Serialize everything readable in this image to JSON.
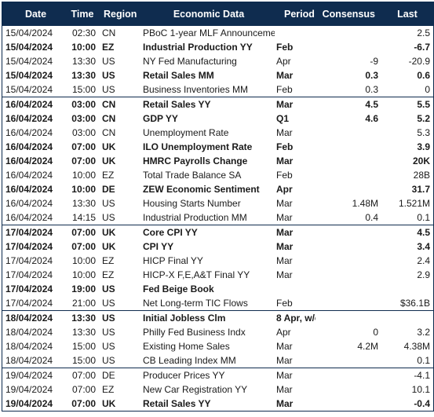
{
  "table": {
    "headers": {
      "date": "Date",
      "time": "Time",
      "region": "Region",
      "data": "Economic Data",
      "period": "Period",
      "consensus": "Consensus",
      "last": "Last"
    },
    "header_bg": "#0f2c4f",
    "rows": [
      {
        "date": "15/04/2024",
        "time": "02:30",
        "region": "CN",
        "data": "PBoC 1-year MLF Announcement",
        "period": "",
        "consensus": "",
        "last": "2.5",
        "bold": false,
        "group_start": false
      },
      {
        "date": "15/04/2024",
        "time": "10:00",
        "region": "EZ",
        "data": "Industrial Production YY",
        "period": "Feb",
        "consensus": "",
        "last": "-6.7",
        "bold": true,
        "group_start": false
      },
      {
        "date": "15/04/2024",
        "time": "13:30",
        "region": "US",
        "data": "NY Fed Manufacturing",
        "period": "Apr",
        "consensus": "-9",
        "last": "-20.9",
        "bold": false,
        "group_start": false
      },
      {
        "date": "15/04/2024",
        "time": "13:30",
        "region": "US",
        "data": "Retail Sales MM",
        "period": "Mar",
        "consensus": "0.3",
        "last": "0.6",
        "bold": true,
        "group_start": false
      },
      {
        "date": "15/04/2024",
        "time": "15:00",
        "region": "US",
        "data": "Business Inventories MM",
        "period": "Feb",
        "consensus": "0.3",
        "last": "0",
        "bold": false,
        "group_start": false
      },
      {
        "date": "16/04/2024",
        "time": "03:00",
        "region": "CN",
        "data": "Retail Sales YY",
        "period": "Mar",
        "consensus": "4.5",
        "last": "5.5",
        "bold": true,
        "group_start": true
      },
      {
        "date": "16/04/2024",
        "time": "03:00",
        "region": "CN",
        "data": "GDP YY",
        "period": "Q1",
        "consensus": "4.6",
        "last": "5.2",
        "bold": true,
        "group_start": false
      },
      {
        "date": "16/04/2024",
        "time": "03:00",
        "region": "CN",
        "data": "Unemployment Rate",
        "period": "Mar",
        "consensus": "",
        "last": "5.3",
        "bold": false,
        "group_start": false
      },
      {
        "date": "16/04/2024",
        "time": "07:00",
        "region": "UK",
        "data": "ILO Unemployment Rate",
        "period": "Feb",
        "consensus": "",
        "last": "3.9",
        "bold": true,
        "group_start": false
      },
      {
        "date": "16/04/2024",
        "time": "07:00",
        "region": "UK",
        "data": "HMRC Payrolls Change",
        "period": "Mar",
        "consensus": "",
        "last": "20K",
        "bold": true,
        "group_start": false
      },
      {
        "date": "16/04/2024",
        "time": "10:00",
        "region": "EZ",
        "data": "Total Trade Balance SA",
        "period": "Feb",
        "consensus": "",
        "last": "28B",
        "bold": false,
        "group_start": false
      },
      {
        "date": "16/04/2024",
        "time": "10:00",
        "region": "DE",
        "data": "ZEW Economic Sentiment",
        "period": "Apr",
        "consensus": "",
        "last": "31.7",
        "bold": true,
        "group_start": false
      },
      {
        "date": "16/04/2024",
        "time": "13:30",
        "region": "US",
        "data": "Housing Starts Number",
        "period": "Mar",
        "consensus": "1.48M",
        "last": "1.521M",
        "bold": false,
        "group_start": false
      },
      {
        "date": "16/04/2024",
        "time": "14:15",
        "region": "US",
        "data": "Industrial Production MM",
        "period": "Mar",
        "consensus": "0.4",
        "last": "0.1",
        "bold": false,
        "group_start": false
      },
      {
        "date": "17/04/2024",
        "time": "07:00",
        "region": "UK",
        "data": "Core CPI YY",
        "period": "Mar",
        "consensus": "",
        "last": "4.5",
        "bold": true,
        "group_start": true
      },
      {
        "date": "17/04/2024",
        "time": "07:00",
        "region": "UK",
        "data": "CPI YY",
        "period": "Mar",
        "consensus": "",
        "last": "3.4",
        "bold": true,
        "group_start": false
      },
      {
        "date": "17/04/2024",
        "time": "10:00",
        "region": "EZ",
        "data": "HICP Final YY",
        "period": "Mar",
        "consensus": "",
        "last": "2.4",
        "bold": false,
        "group_start": false
      },
      {
        "date": "17/04/2024",
        "time": "10:00",
        "region": "EZ",
        "data": "HICP-X F,E,A&T Final YY",
        "period": "Mar",
        "consensus": "",
        "last": "2.9",
        "bold": false,
        "group_start": false
      },
      {
        "date": "17/04/2024",
        "time": "19:00",
        "region": "US",
        "data": "Fed Beige Book",
        "period": "",
        "consensus": "",
        "last": "",
        "bold": true,
        "group_start": false
      },
      {
        "date": "17/04/2024",
        "time": "21:00",
        "region": "US",
        "data": "Net Long-term TIC Flows",
        "period": "Feb",
        "consensus": "",
        "last": "$36.1B",
        "bold": false,
        "group_start": false
      },
      {
        "date": "18/04/2024",
        "time": "13:30",
        "region": "US",
        "data": "Initial Jobless Clm",
        "period": "8 Apr, w/e",
        "consensus": "",
        "last": "",
        "bold": true,
        "group_start": true
      },
      {
        "date": "18/04/2024",
        "time": "13:30",
        "region": "US",
        "data": "Philly Fed Business Indx",
        "period": "Apr",
        "consensus": "0",
        "last": "3.2",
        "bold": false,
        "group_start": false
      },
      {
        "date": "18/04/2024",
        "time": "15:00",
        "region": "US",
        "data": "Existing Home Sales",
        "period": "Mar",
        "consensus": "4.2M",
        "last": "4.38M",
        "bold": false,
        "group_start": false
      },
      {
        "date": "18/04/2024",
        "time": "15:00",
        "region": "US",
        "data": "CB Leading Index MM",
        "period": "Mar",
        "consensus": "",
        "last": "0.1",
        "bold": false,
        "group_start": false
      },
      {
        "date": "19/04/2024",
        "time": "07:00",
        "region": "DE",
        "data": "Producer Prices YY",
        "period": "Mar",
        "consensus": "",
        "last": "-4.1",
        "bold": false,
        "group_start": true
      },
      {
        "date": "19/04/2024",
        "time": "07:00",
        "region": "EZ",
        "data": "New Car Registration YY",
        "period": "Mar",
        "consensus": "",
        "last": "10.1",
        "bold": false,
        "group_start": false
      },
      {
        "date": "19/04/2024",
        "time": "07:00",
        "region": "UK",
        "data": "Retail Sales YY",
        "period": "Mar",
        "consensus": "",
        "last": "-0.4",
        "bold": true,
        "group_start": false
      }
    ]
  }
}
